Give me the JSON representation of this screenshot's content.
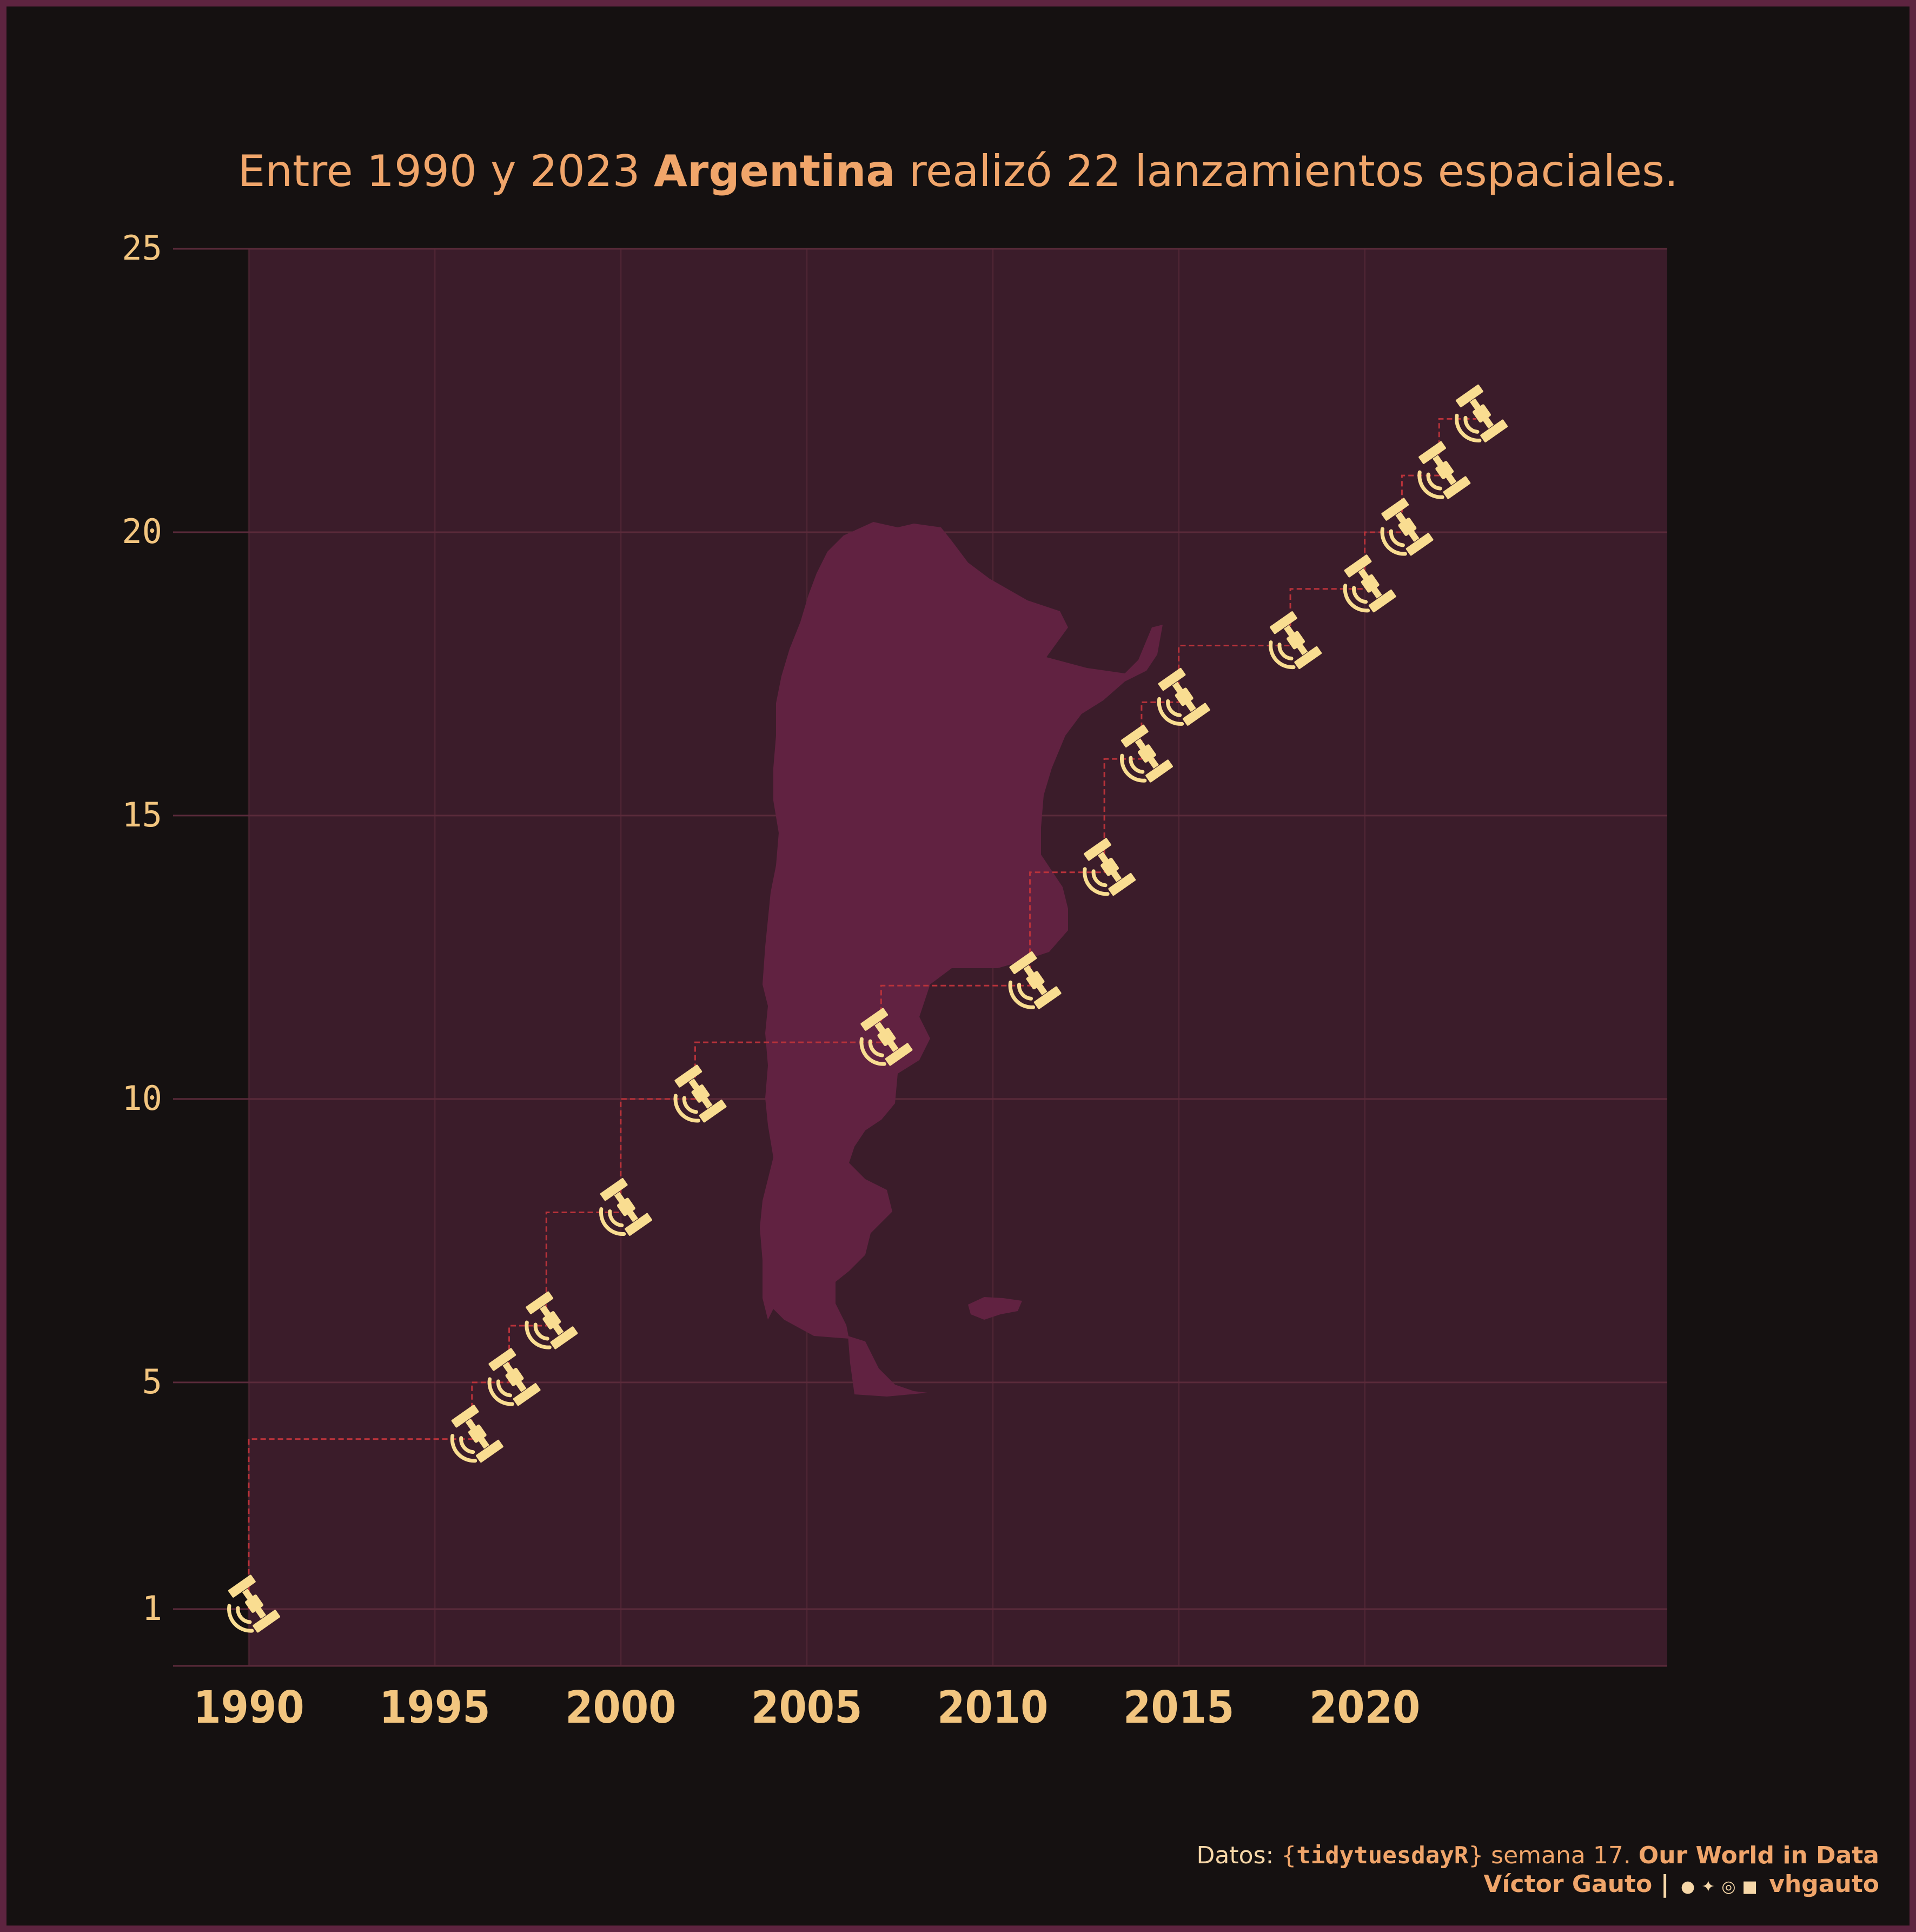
{
  "title": {
    "part1": "Entre 1990 y 2023 ",
    "highlight": "Argentina",
    "part2": " realizó 22 lanzamientos espaciales."
  },
  "caption": {
    "line1_prefix": "Datos: ",
    "brace_open": "{",
    "package": "tidytuesdayR",
    "brace_close": "}",
    "week": " semana 17. ",
    "source": "Our World in Data",
    "author": "Víctor Gauto",
    "separator": "|",
    "handle": "vhgauto",
    "social_icons": [
      "github-icon",
      "twitter-icon",
      "instagram-icon",
      "mastodon-icon"
    ]
  },
  "colors": {
    "background": "#151111",
    "frame": "#5e2440",
    "panel": "#3b1c2a",
    "map_fill": "#612241",
    "grid": "#5a2a3a",
    "step_line": "#b8323a",
    "satellite": "#f9dd91",
    "title_text": "#f0a56a",
    "tick_text": "#f2c57f"
  },
  "chart_data": {
    "type": "step-scatter",
    "marker_icon": "satellite-icon",
    "background_shape": "argentina-map",
    "points": [
      {
        "x": 1990,
        "y": 1
      },
      {
        "x": 1996,
        "y": 4
      },
      {
        "x": 1997,
        "y": 5
      },
      {
        "x": 1998,
        "y": 6
      },
      {
        "x": 2000,
        "y": 8
      },
      {
        "x": 2002,
        "y": 10
      },
      {
        "x": 2007,
        "y": 11
      },
      {
        "x": 2011,
        "y": 12
      },
      {
        "x": 2013,
        "y": 14
      },
      {
        "x": 2014,
        "y": 16
      },
      {
        "x": 2015,
        "y": 17
      },
      {
        "x": 2018,
        "y": 18
      },
      {
        "x": 2020,
        "y": 19
      },
      {
        "x": 2021,
        "y": 20
      },
      {
        "x": 2022,
        "y": 21
      },
      {
        "x": 2023,
        "y": 22
      }
    ],
    "x_ticks": [
      1990,
      1995,
      2000,
      2005,
      2010,
      2015,
      2020
    ],
    "y_ticks": [
      1,
      5,
      10,
      15,
      20,
      25
    ],
    "xlim": [
      1990,
      2023
    ],
    "ylim": [
      1,
      25
    ],
    "xlabel": "",
    "ylabel": "",
    "grid": true
  }
}
